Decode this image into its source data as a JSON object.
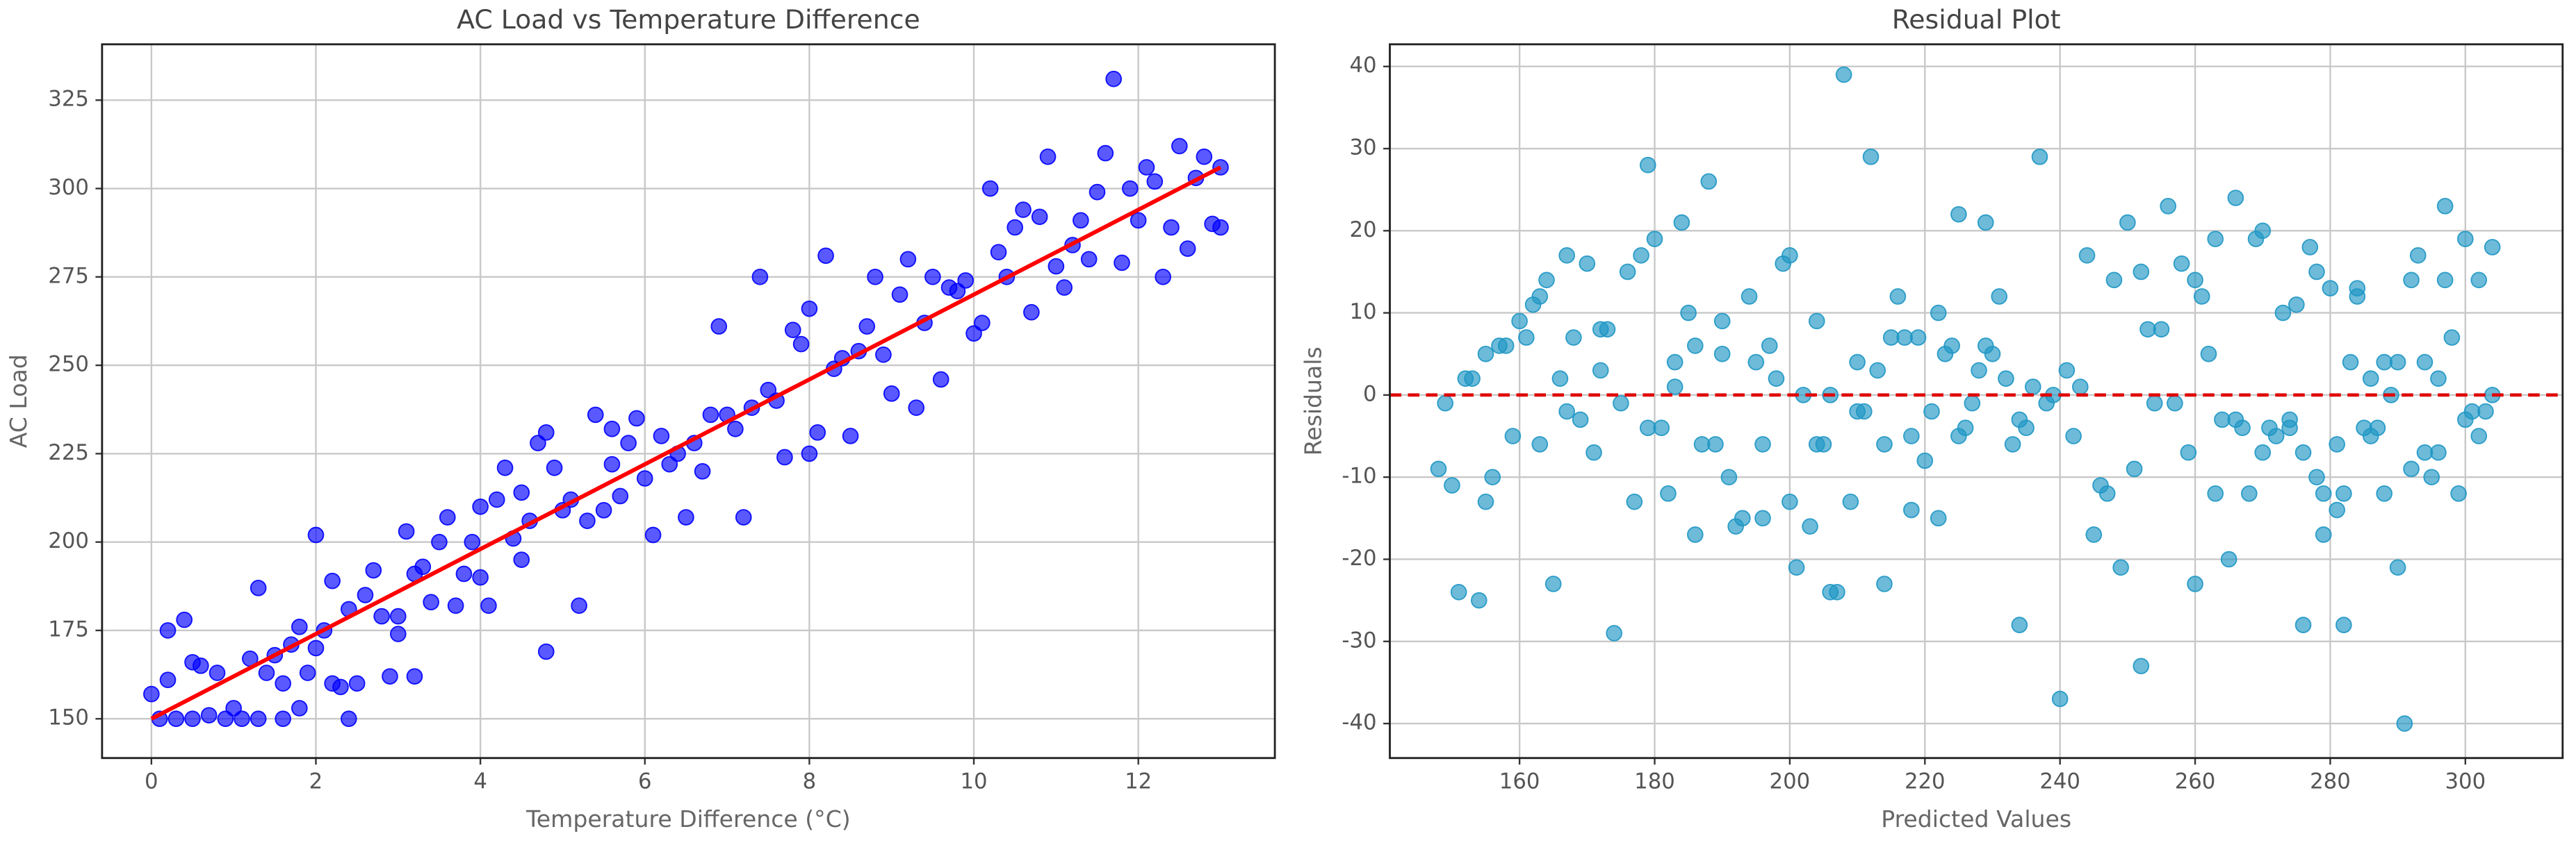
{
  "chart_data": [
    {
      "type": "scatter",
      "title": "AC Load vs Temperature Difference",
      "xlabel": "Temperature Difference (°C)",
      "ylabel": "AC Load",
      "xlim": [
        -0.6,
        13.66
      ],
      "ylim": [
        138.9,
        340.8
      ],
      "xticks": [
        0,
        2,
        4,
        6,
        8,
        10,
        12
      ],
      "yticks": [
        150,
        175,
        200,
        225,
        250,
        275,
        300,
        325
      ],
      "grid": true,
      "color": "#0000ff",
      "x": [
        0,
        0.1,
        0.2,
        0.2,
        0.4,
        0.5,
        0.6,
        0.3,
        0.5,
        0.7,
        0.8,
        0.9,
        1.0,
        1.1,
        1.2,
        1.3,
        1.3,
        1.4,
        1.5,
        1.6,
        1.6,
        1.7,
        1.8,
        1.8,
        1.9,
        2.0,
        2.0,
        2.1,
        2.2,
        2.2,
        2.3,
        2.4,
        2.4,
        2.5,
        2.6,
        2.7,
        2.8,
        2.9,
        3.0,
        3.0,
        3.1,
        3.2,
        3.2,
        3.3,
        3.4,
        3.5,
        3.6,
        3.7,
        3.8,
        3.9,
        4.0,
        4.0,
        4.1,
        4.2,
        4.3,
        4.4,
        4.5,
        4.5,
        4.6,
        4.7,
        4.8,
        4.8,
        4.9,
        5.0,
        5.1,
        5.2,
        5.3,
        5.4,
        5.5,
        5.6,
        5.6,
        5.7,
        5.8,
        5.9,
        6.0,
        6.1,
        6.2,
        6.3,
        6.4,
        6.5,
        6.6,
        6.7,
        6.8,
        6.9,
        7.0,
        7.1,
        7.2,
        7.3,
        7.4,
        7.5,
        7.6,
        7.7,
        7.8,
        7.9,
        8.0,
        8.0,
        8.1,
        8.2,
        8.3,
        8.4,
        8.5,
        8.6,
        8.7,
        8.8,
        8.9,
        9.0,
        9.1,
        9.2,
        9.3,
        9.4,
        9.5,
        9.6,
        9.7,
        9.8,
        9.9,
        10.0,
        10.1,
        10.2,
        10.3,
        10.4,
        10.5,
        10.6,
        10.7,
        10.8,
        10.9,
        11.0,
        11.1,
        11.2,
        11.3,
        11.4,
        11.5,
        11.6,
        11.7,
        11.8,
        11.9,
        12.0,
        12.1,
        12.2,
        12.3,
        12.4,
        12.5,
        12.6,
        12.7,
        12.8,
        12.9,
        13.0,
        13.0
      ],
      "y": [
        157,
        150,
        161,
        175,
        178,
        166,
        165,
        150,
        150,
        151,
        163,
        150,
        153,
        150,
        167,
        150,
        187,
        163,
        168,
        150,
        160,
        171,
        153,
        176,
        163,
        170,
        202,
        175,
        160,
        189,
        159,
        150,
        181,
        160,
        185,
        192,
        179,
        162,
        174,
        179,
        203,
        191,
        162,
        193,
        183,
        200,
        207,
        182,
        191,
        200,
        190,
        210,
        182,
        212,
        221,
        201,
        195,
        214,
        206,
        228,
        231,
        169,
        221,
        209,
        212,
        182,
        206,
        236,
        209,
        232,
        222,
        213,
        228,
        235,
        218,
        202,
        230,
        222,
        225,
        207,
        228,
        220,
        236,
        261,
        236,
        232,
        207,
        238,
        275,
        243,
        240,
        224,
        260,
        256,
        266,
        225,
        231,
        281,
        249,
        252,
        230,
        254,
        261,
        275,
        253,
        242,
        270,
        280,
        238,
        262,
        275,
        246,
        272,
        271,
        274,
        259,
        262,
        300,
        282,
        275,
        289,
        294,
        265,
        292,
        309,
        278,
        272,
        284,
        291,
        280,
        299,
        310,
        331,
        279,
        300,
        291,
        306,
        302,
        275,
        289,
        312,
        283,
        303,
        309,
        290,
        306,
        289
      ],
      "line": {
        "x": [
          0,
          13
        ],
        "y": [
          150,
          306
        ],
        "color": "#ff0000"
      }
    },
    {
      "type": "scatter",
      "title": "Residual Plot",
      "xlabel": "Predicted Values",
      "ylabel": "Residuals",
      "xlim": [
        140.8,
        314.4
      ],
      "ylim": [
        -44.2,
        42.7
      ],
      "xticks": [
        160,
        180,
        200,
        220,
        240,
        260,
        280,
        300
      ],
      "yticks": [
        -40,
        -30,
        -20,
        -10,
        0,
        10,
        20,
        30,
        40
      ],
      "grid": true,
      "color": "#1f97c4",
      "x": [
        148,
        149,
        150,
        151,
        152,
        153,
        154,
        155,
        155,
        156,
        157,
        158,
        159,
        160,
        161,
        162,
        163,
        163,
        164,
        165,
        166,
        167,
        167,
        168,
        169,
        170,
        171,
        172,
        172,
        173,
        174,
        175,
        176,
        177,
        178,
        179,
        179,
        180,
        181,
        182,
        183,
        183,
        184,
        185,
        186,
        186,
        187,
        188,
        189,
        190,
        190,
        191,
        192,
        193,
        194,
        195,
        196,
        196,
        197,
        198,
        199,
        200,
        200,
        201,
        202,
        203,
        204,
        204,
        205,
        206,
        206,
        207,
        208,
        209,
        210,
        210,
        211,
        212,
        213,
        214,
        214,
        215,
        216,
        217,
        218,
        218,
        219,
        220,
        221,
        222,
        222,
        223,
        224,
        225,
        225,
        226,
        227,
        228,
        229,
        229,
        230,
        231,
        232,
        233,
        234,
        234,
        235,
        236,
        237,
        238,
        239,
        240,
        241,
        242,
        243,
        244,
        245,
        246,
        247,
        248,
        249,
        250,
        251,
        252,
        252,
        253,
        254,
        255,
        256,
        257,
        258,
        259,
        260,
        260,
        261,
        262,
        263,
        263,
        264,
        265,
        266,
        266,
        267,
        268,
        269,
        270,
        270,
        271,
        272,
        273,
        274,
        274,
        275,
        276,
        276,
        277,
        278,
        278,
        279,
        279,
        280,
        281,
        281,
        282,
        282,
        283,
        284,
        284,
        285,
        286,
        286,
        287,
        288,
        288,
        289,
        290,
        290,
        291,
        292,
        292,
        293,
        294,
        294,
        295,
        296,
        296,
        297,
        297,
        298,
        299,
        300,
        300,
        301,
        302,
        302,
        303,
        304,
        304
      ],
      "y": [
        -9,
        -1,
        -11,
        -24,
        2,
        2,
        -25,
        -13,
        5,
        -10,
        6,
        6,
        -5,
        9,
        7,
        11,
        -6,
        12,
        14,
        -23,
        2,
        -2,
        17,
        7,
        -3,
        16,
        -7,
        8,
        3,
        8,
        -29,
        -1,
        15,
        -13,
        17,
        28,
        -4,
        19,
        -4,
        -12,
        1,
        4,
        21,
        10,
        6,
        -17,
        -6,
        26,
        -6,
        5,
        9,
        -10,
        -16,
        -15,
        12,
        4,
        -6,
        -15,
        6,
        2,
        16,
        17,
        -13,
        -21,
        0,
        -16,
        -6,
        9,
        -6,
        -24,
        0,
        -24,
        39,
        -13,
        -2,
        4,
        -2,
        29,
        3,
        -6,
        -23,
        7,
        12,
        7,
        -14,
        -5,
        7,
        -8,
        -2,
        -15,
        10,
        5,
        6,
        22,
        -5,
        -4,
        -1,
        3,
        21,
        6,
        5,
        12,
        2,
        -6,
        -28,
        -3,
        -4,
        1,
        29,
        -1,
        0,
        -37,
        3,
        -5,
        1,
        17,
        -17,
        -11,
        -12,
        14,
        -21,
        21,
        -9,
        -33,
        15,
        8,
        -1,
        8,
        23,
        -1,
        16,
        -7,
        14,
        -23,
        12,
        5,
        -12,
        19,
        -3,
        -20,
        24,
        -3,
        -4,
        -12,
        19,
        20,
        -7,
        -4,
        -5,
        10,
        -3,
        -4,
        11,
        -28,
        -7,
        18,
        -10,
        15,
        -12,
        -17,
        13,
        -14,
        -6,
        -12,
        -28,
        4,
        12,
        13,
        -4,
        2,
        -5,
        -4,
        -12,
        4,
        0,
        -21,
        4,
        -40,
        -9,
        14,
        17,
        -7,
        4,
        -10,
        -7,
        2,
        14,
        23,
        7,
        -12,
        -3,
        19,
        -2,
        14,
        -5,
        -2,
        0,
        18
      ],
      "hline": {
        "y": 0,
        "color": "#e00000",
        "style": "dashed"
      }
    }
  ]
}
